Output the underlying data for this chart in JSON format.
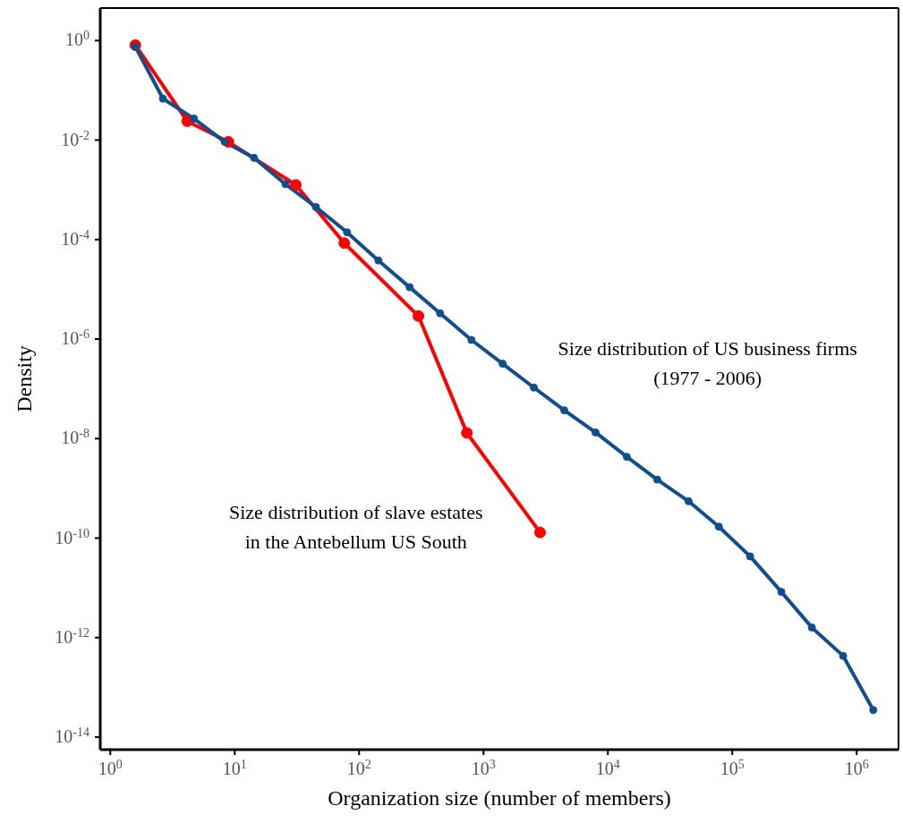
{
  "chart_data": {
    "type": "line",
    "xlabel": "Organization size (number of members)",
    "ylabel": "Density",
    "log": "xy",
    "legend": false,
    "marker": "circle",
    "line_style": "solid",
    "xlim": [
      0.83,
      2170000
    ],
    "ylim": [
      5.6e-15,
      4.5
    ],
    "xticks": [
      {
        "value": 1,
        "label": "10$^{0}$"
      },
      {
        "value": 10,
        "label": "10$^{1}$"
      },
      {
        "value": 100,
        "label": "10$^{2}$"
      },
      {
        "value": 1000,
        "label": "10$^{3}$"
      },
      {
        "value": 10000,
        "label": "10$^{4}$"
      },
      {
        "value": 100000,
        "label": "10$^{5}$"
      },
      {
        "value": 1000000,
        "label": "10$^{6}$"
      }
    ],
    "yticks": [
      {
        "value": 1,
        "label": "10$^{0}$"
      },
      {
        "value": 0.01,
        "label": "10$^{-2}$"
      },
      {
        "value": 0.0001,
        "label": "10$^{-4}$"
      },
      {
        "value": 1e-06,
        "label": "10$^{-6}$"
      },
      {
        "value": 1e-08,
        "label": "10$^{-8}$"
      },
      {
        "value": 1e-10,
        "label": "10$^{-10}$"
      },
      {
        "value": 1e-12,
        "label": "10$^{-12}$"
      },
      {
        "value": 1e-14,
        "label": "10$^{-14}$"
      }
    ],
    "series": [
      {
        "name": "Size distribution of slave estates\nin the Antebellum US South",
        "color": "#ff0000",
        "x": [
          1.59,
          4.15,
          8.9,
          31,
          76,
          300,
          735,
          2850
        ],
        "values": [
          0.81,
          0.024,
          0.0092,
          0.00125,
          8.5e-05,
          2.9e-06,
          1.3e-08,
          1.3e-10
        ]
      },
      {
        "name": "Size distribution of US business firms\n(1977 - 2006)",
        "color": "#124e8c",
        "x": [
          1.59,
          2.65,
          4.7,
          8.3,
          14.3,
          25.6,
          45,
          80,
          143,
          255,
          448,
          800,
          1425,
          2540,
          4460,
          7960,
          14200,
          24900,
          44500,
          78000,
          139000,
          248000,
          436000,
          778000,
          1360000
        ],
        "values": [
          0.75,
          0.068,
          0.027,
          0.0092,
          0.0044,
          0.0013,
          0.00045,
          0.00014,
          3.8e-05,
          1.1e-05,
          3.3e-06,
          9.6e-07,
          3.2e-07,
          1.06e-07,
          3.7e-08,
          1.33e-08,
          4.3e-09,
          1.5e-09,
          5.5e-10,
          1.7e-10,
          4.3e-11,
          8.3e-12,
          1.6e-12,
          4.3e-13,
          3.5e-14
        ]
      }
    ]
  }
}
